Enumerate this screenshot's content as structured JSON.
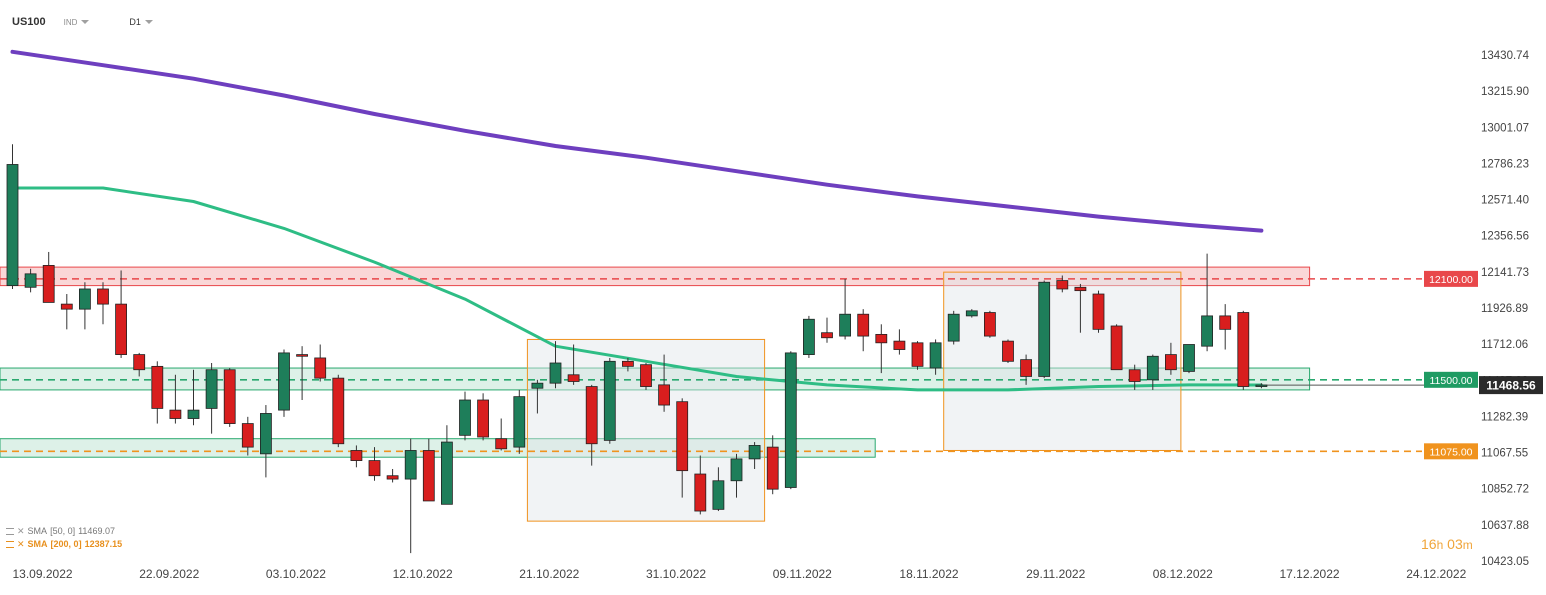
{
  "header": {
    "symbol": "US100",
    "instrument_type": "IND",
    "timeframe": "D1"
  },
  "legend": {
    "sma50": {
      "label": "SMA",
      "params": "[50, 0]",
      "value": "11469.07"
    },
    "sma200": {
      "label": "SMA",
      "params": "[200, 0]",
      "value": "12387.15"
    }
  },
  "countdown": {
    "hours": "16",
    "hours_unit": "h",
    "minutes": "03",
    "minutes_unit": "m"
  },
  "colors": {
    "bull": "#1e7e5a",
    "bear": "#d81e1e",
    "sma50": "#2ebd85",
    "sma200": "#6e3fbf",
    "resistance": "#e8474a",
    "support": "#29a86e",
    "support_low": "#f0931e",
    "current_price": "#2b2b2b"
  },
  "chart_data": {
    "type": "candlestick",
    "y_axis": {
      "ticks": [
        "13430.74",
        "13215.90",
        "13001.07",
        "12786.23",
        "12571.40",
        "12356.56",
        "12141.73",
        "11926.89",
        "11712.06",
        "11497.22",
        "11282.39",
        "11067.55",
        "10852.72",
        "10637.88",
        "10423.05"
      ],
      "range": [
        10423.05,
        13645.57
      ]
    },
    "x_axis": {
      "labels": [
        "13.09.2022",
        "22.09.2022",
        "03.10.2022",
        "12.10.2022",
        "21.10.2022",
        "31.10.2022",
        "09.11.2022",
        "18.11.2022",
        "29.11.2022",
        "08.12.2022",
        "17.12.2022",
        "24.12.2022"
      ],
      "label_slots": [
        0,
        7,
        14,
        21,
        28,
        35,
        42,
        49,
        56,
        63,
        70,
        77
      ]
    },
    "candles": [
      {
        "d": "13.09",
        "o": 12060,
        "h": 12900,
        "l": 12040,
        "c": 12780
      },
      {
        "d": "14.09",
        "o": 12050,
        "h": 12160,
        "l": 12020,
        "c": 12130
      },
      {
        "d": "15.09",
        "o": 12180,
        "h": 12260,
        "l": 11960,
        "c": 11960
      },
      {
        "d": "16.09",
        "o": 11950,
        "h": 12010,
        "l": 11800,
        "c": 11920
      },
      {
        "d": "19.09",
        "o": 11920,
        "h": 12080,
        "l": 11800,
        "c": 12040
      },
      {
        "d": "20.09",
        "o": 12040,
        "h": 12080,
        "l": 11830,
        "c": 11950
      },
      {
        "d": "21.09",
        "o": 11950,
        "h": 12150,
        "l": 11630,
        "c": 11650
      },
      {
        "d": "22.09",
        "o": 11650,
        "h": 11660,
        "l": 11520,
        "c": 11560
      },
      {
        "d": "23.09",
        "o": 11580,
        "h": 11610,
        "l": 11240,
        "c": 11330
      },
      {
        "d": "26.09",
        "o": 11320,
        "h": 11530,
        "l": 11240,
        "c": 11270
      },
      {
        "d": "27.09",
        "o": 11270,
        "h": 11560,
        "l": 11230,
        "c": 11320
      },
      {
        "d": "28.09",
        "o": 11330,
        "h": 11600,
        "l": 11180,
        "c": 11560
      },
      {
        "d": "29.09",
        "o": 11560,
        "h": 11570,
        "l": 11220,
        "c": 11240
      },
      {
        "d": "30.09",
        "o": 11240,
        "h": 11280,
        "l": 11050,
        "c": 11100
      },
      {
        "d": "03.10",
        "o": 11060,
        "h": 11350,
        "l": 10920,
        "c": 11300
      },
      {
        "d": "04.10",
        "o": 11320,
        "h": 11680,
        "l": 11280,
        "c": 11660
      },
      {
        "d": "05.10",
        "o": 11650,
        "h": 11700,
        "l": 11380,
        "c": 11640
      },
      {
        "d": "06.10",
        "o": 11630,
        "h": 11710,
        "l": 11490,
        "c": 11510
      },
      {
        "d": "07.10",
        "o": 11510,
        "h": 11530,
        "l": 11100,
        "c": 11120
      },
      {
        "d": "10.10",
        "o": 11080,
        "h": 11110,
        "l": 10980,
        "c": 11020
      },
      {
        "d": "11.10",
        "o": 11020,
        "h": 11100,
        "l": 10900,
        "c": 10930
      },
      {
        "d": "12.10",
        "o": 10930,
        "h": 10970,
        "l": 10890,
        "c": 10910
      },
      {
        "d": "13.10",
        "o": 10910,
        "h": 11150,
        "l": 10470,
        "c": 11080
      },
      {
        "d": "14.10",
        "o": 11080,
        "h": 11150,
        "l": 10780,
        "c": 10780
      },
      {
        "d": "17.10",
        "o": 10760,
        "h": 11230,
        "l": 10760,
        "c": 11130
      },
      {
        "d": "18.10",
        "o": 11170,
        "h": 11430,
        "l": 11140,
        "c": 11380
      },
      {
        "d": "19.10",
        "o": 11380,
        "h": 11420,
        "l": 11140,
        "c": 11160
      },
      {
        "d": "20.10",
        "o": 11150,
        "h": 11270,
        "l": 11080,
        "c": 11090
      },
      {
        "d": "21.10",
        "o": 11100,
        "h": 11440,
        "l": 11060,
        "c": 11400
      },
      {
        "d": "24.10",
        "o": 11450,
        "h": 11500,
        "l": 11300,
        "c": 11480
      },
      {
        "d": "25.10",
        "o": 11480,
        "h": 11730,
        "l": 11450,
        "c": 11600
      },
      {
        "d": "26.10",
        "o": 11530,
        "h": 11710,
        "l": 11470,
        "c": 11490
      },
      {
        "d": "27.10",
        "o": 11460,
        "h": 11470,
        "l": 10990,
        "c": 11120
      },
      {
        "d": "28.10",
        "o": 11140,
        "h": 11630,
        "l": 11120,
        "c": 11610
      },
      {
        "d": "31.10",
        "o": 11610,
        "h": 11630,
        "l": 11550,
        "c": 11580
      },
      {
        "d": "01.11",
        "o": 11590,
        "h": 11600,
        "l": 11440,
        "c": 11460
      },
      {
        "d": "02.11",
        "o": 11470,
        "h": 11650,
        "l": 11310,
        "c": 11350
      },
      {
        "d": "03.11",
        "o": 11370,
        "h": 11390,
        "l": 10800,
        "c": 10960
      },
      {
        "d": "04.11",
        "o": 10940,
        "h": 11050,
        "l": 10700,
        "c": 10720
      },
      {
        "d": "07.11",
        "o": 10730,
        "h": 10980,
        "l": 10720,
        "c": 10900
      },
      {
        "d": "08.11",
        "o": 10900,
        "h": 11060,
        "l": 10800,
        "c": 11030
      },
      {
        "d": "09.11",
        "o": 11030,
        "h": 11130,
        "l": 10970,
        "c": 11110
      },
      {
        "d": "10.11",
        "o": 11100,
        "h": 11170,
        "l": 10820,
        "c": 10850
      },
      {
        "d": "11.11",
        "o": 10860,
        "h": 11670,
        "l": 10850,
        "c": 11660
      },
      {
        "d": "14.11",
        "o": 11650,
        "h": 11880,
        "l": 11630,
        "c": 11860
      },
      {
        "d": "15.11",
        "o": 11780,
        "h": 11870,
        "l": 11720,
        "c": 11750
      },
      {
        "d": "16.11",
        "o": 11760,
        "h": 12100,
        "l": 11740,
        "c": 11890
      },
      {
        "d": "17.11",
        "o": 11890,
        "h": 11920,
        "l": 11670,
        "c": 11760
      },
      {
        "d": "18.11",
        "o": 11770,
        "h": 11830,
        "l": 11540,
        "c": 11720
      },
      {
        "d": "21.11",
        "o": 11730,
        "h": 11800,
        "l": 11650,
        "c": 11680
      },
      {
        "d": "22.11",
        "o": 11720,
        "h": 11730,
        "l": 11560,
        "c": 11580
      },
      {
        "d": "23.11",
        "o": 11570,
        "h": 11740,
        "l": 11530,
        "c": 11720
      },
      {
        "d": "24.11",
        "o": 11730,
        "h": 11910,
        "l": 11710,
        "c": 11890
      },
      {
        "d": "25.11",
        "o": 11880,
        "h": 11920,
        "l": 11870,
        "c": 11910
      },
      {
        "d": "28.11",
        "o": 11900,
        "h": 11910,
        "l": 11750,
        "c": 11760
      },
      {
        "d": "29.11",
        "o": 11730,
        "h": 11740,
        "l": 11600,
        "c": 11610
      },
      {
        "d": "30.11",
        "o": 11620,
        "h": 11650,
        "l": 11470,
        "c": 11520
      },
      {
        "d": "01.12",
        "o": 11520,
        "h": 12090,
        "l": 11510,
        "c": 12080
      },
      {
        "d": "02.12",
        "o": 12090,
        "h": 12120,
        "l": 12020,
        "c": 12040
      },
      {
        "d": "05.12",
        "o": 12050,
        "h": 12070,
        "l": 11780,
        "c": 12030
      },
      {
        "d": "06.12",
        "o": 12010,
        "h": 12030,
        "l": 11780,
        "c": 11800
      },
      {
        "d": "07.12",
        "o": 11820,
        "h": 11830,
        "l": 11560,
        "c": 11560
      },
      {
        "d": "08.12",
        "o": 11560,
        "h": 11590,
        "l": 11440,
        "c": 11490
      },
      {
        "d": "09.12",
        "o": 11500,
        "h": 11650,
        "l": 11440,
        "c": 11640
      },
      {
        "d": "12.12",
        "o": 11650,
        "h": 11720,
        "l": 11530,
        "c": 11560
      },
      {
        "d": "13.12",
        "o": 11550,
        "h": 11710,
        "l": 11540,
        "c": 11710
      },
      {
        "d": "14.12",
        "o": 11700,
        "h": 12250,
        "l": 11670,
        "c": 11880
      },
      {
        "d": "15.12",
        "o": 11880,
        "h": 11950,
        "l": 11680,
        "c": 11800
      },
      {
        "d": "16.12",
        "o": 11900,
        "h": 11910,
        "l": 11440,
        "c": 11460
      },
      {
        "d": "19.12",
        "o": 11460,
        "h": 11480,
        "l": 11450,
        "c": 11469
      }
    ],
    "series": [
      {
        "name": "SMA [50, 0]",
        "x": [
          0,
          5,
          10,
          15,
          20,
          25,
          30,
          35,
          40,
          45,
          50,
          55,
          60,
          65,
          69
        ],
        "values": [
          12640,
          12640,
          12560,
          12400,
          12200,
          11980,
          11700,
          11610,
          11520,
          11470,
          11440,
          11440,
          11460,
          11470,
          11469
        ]
      },
      {
        "name": "SMA [200, 0]",
        "x": [
          0,
          5,
          10,
          15,
          20,
          25,
          30,
          35,
          40,
          45,
          50,
          55,
          60,
          65,
          69
        ],
        "values": [
          13450,
          13370,
          13290,
          13190,
          13080,
          12980,
          12890,
          12820,
          12740,
          12660,
          12590,
          12530,
          12470,
          12420,
          12387
        ]
      }
    ],
    "levels": [
      {
        "value": 12100,
        "label": "12100.00",
        "kind": "resistance"
      },
      {
        "value": 11500,
        "label": "11500.00",
        "kind": "support"
      },
      {
        "value": 11075,
        "label": "11075.00",
        "kind": "support_low"
      }
    ],
    "current_price": {
      "value": 11468.56,
      "label": "11468.56"
    },
    "zones": [
      {
        "from": 0,
        "to": 71,
        "low": 12060,
        "high": 12170,
        "kind": "resistance"
      },
      {
        "from": 0,
        "to": 71,
        "low": 11440,
        "high": 11570,
        "kind": "support"
      },
      {
        "from": 0,
        "to": 47,
        "low": 11040,
        "high": 11150,
        "kind": "support"
      }
    ],
    "boxes": [
      {
        "from": 29,
        "to": 41,
        "low": 10660,
        "high": 11740
      },
      {
        "from": 52,
        "to": 64,
        "low": 11080,
        "high": 12140
      }
    ],
    "grid": false
  }
}
